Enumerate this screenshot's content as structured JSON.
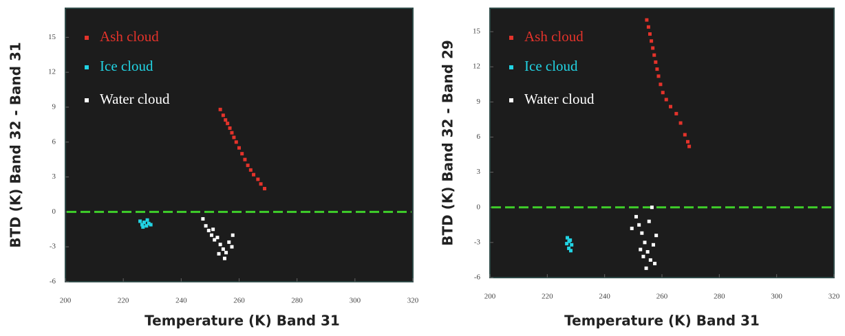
{
  "chart_data": [
    {
      "type": "scatter",
      "x_label": "Temperature (K) Band 31",
      "y_label": "BTD (K) Band 32 - Band 31",
      "xlim": [
        200,
        320
      ],
      "ylim": [
        -6,
        17.5
      ],
      "xticks": [
        200,
        220,
        240,
        260,
        280,
        300,
        320
      ],
      "yticks": [
        -6,
        -3,
        0,
        3,
        6,
        9,
        12,
        15
      ],
      "hline": 0,
      "hline_color": "#3fcf2a",
      "background": "#1c1c1c",
      "series": [
        {
          "name": "Ash cloud",
          "color": "#e3332b",
          "x": [
            253.5,
            254.5,
            255.3,
            256,
            256.8,
            257.5,
            258.2,
            259,
            260,
            261,
            262,
            263,
            264,
            265,
            266.5,
            267.5,
            268.8
          ],
          "values": [
            8.8,
            8.3,
            7.9,
            7.6,
            7.2,
            6.8,
            6.4,
            6.0,
            5.5,
            5.0,
            4.5,
            4.0,
            3.6,
            3.2,
            2.8,
            2.4,
            2.0
          ]
        },
        {
          "name": "Ice cloud",
          "color": "#22d3e3",
          "x": [
            225.8,
            226.5,
            227.2,
            228,
            228.8,
            229.5,
            226.8,
            228.3
          ],
          "values": [
            -0.8,
            -1.1,
            -0.9,
            -1.2,
            -1.0,
            -1.1,
            -1.3,
            -0.7
          ]
        },
        {
          "name": "Water cloud",
          "color": "#ffffff",
          "x": [
            247.5,
            248.5,
            249.5,
            250.5,
            251.5,
            252.5,
            253.5,
            254.5,
            255.5,
            256.5,
            257.5,
            255,
            253,
            251,
            257.8
          ],
          "values": [
            -0.6,
            -1.2,
            -1.6,
            -2.0,
            -2.4,
            -2.2,
            -2.8,
            -3.2,
            -3.5,
            -2.6,
            -3.0,
            -4.0,
            -3.6,
            -1.5,
            -2.0
          ]
        }
      ]
    },
    {
      "type": "scatter",
      "x_label": "Temperature (K) Band 31",
      "y_label": "BTD (K) Band 32 - Band 29",
      "xlim": [
        200,
        320
      ],
      "ylim": [
        -6,
        17
      ],
      "xticks": [
        200,
        220,
        240,
        260,
        280,
        300,
        320
      ],
      "yticks": [
        -6,
        -3,
        0,
        3,
        6,
        9,
        12,
        15
      ],
      "hline": 0,
      "hline_color": "#3fcf2a",
      "background": "#1c1c1c",
      "series": [
        {
          "name": "Ash cloud",
          "color": "#e3332b",
          "x": [
            254.7,
            255.3,
            255.8,
            256.3,
            256.8,
            257.3,
            257.8,
            258.3,
            258.8,
            259.5,
            260.3,
            261.5,
            263,
            265,
            266.5,
            268,
            269,
            269.5
          ],
          "values": [
            16,
            15.4,
            14.8,
            14.2,
            13.6,
            13,
            12.4,
            11.8,
            11.2,
            10.5,
            9.8,
            9.2,
            8.6,
            8.0,
            7.2,
            6.2,
            5.6,
            5.2
          ]
        },
        {
          "name": "Ice cloud",
          "color": "#22d3e3",
          "x": [
            227,
            228,
            228.5,
            227.5,
            226.8,
            228.2,
            227.6
          ],
          "values": [
            -2.6,
            -2.8,
            -3.2,
            -3.5,
            -3.1,
            -3.7,
            -2.9
          ]
        },
        {
          "name": "Water cloud",
          "color": "#ffffff",
          "x": [
            251,
            252,
            253,
            254,
            255,
            256,
            257,
            258,
            252.5,
            254.5,
            256.5,
            255.5,
            249.5,
            253.5,
            257.5
          ],
          "values": [
            -0.8,
            -1.5,
            -2.2,
            -3.0,
            -3.8,
            -4.5,
            -3.2,
            -2.4,
            -3.6,
            -5.2,
            0,
            -1.2,
            -1.8,
            -4.2,
            -4.8
          ]
        }
      ]
    }
  ]
}
